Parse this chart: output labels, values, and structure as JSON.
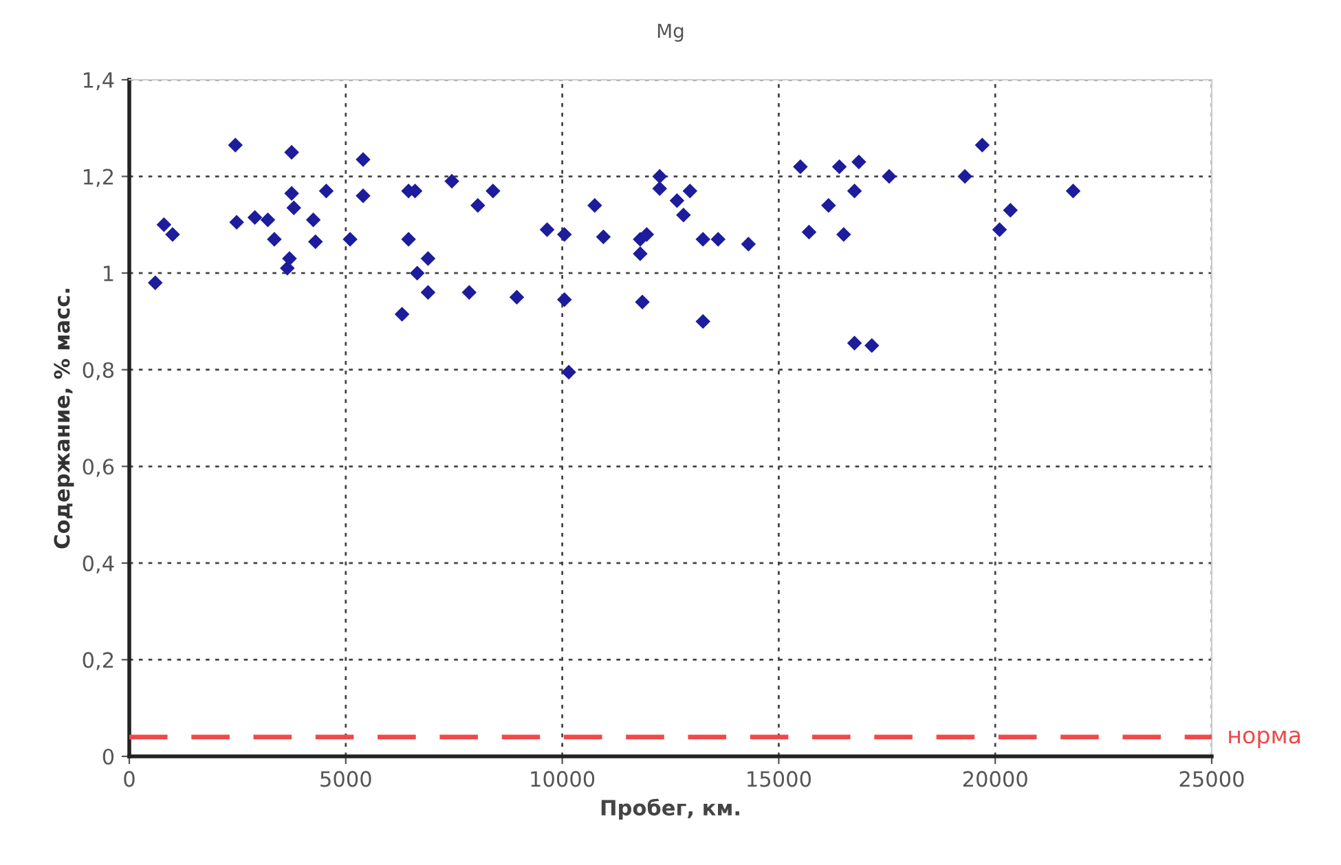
{
  "chart_data": {
    "type": "scatter",
    "title": "Mg",
    "xlabel": "Пробег, км.",
    "ylabel": "Содержание, % масс.",
    "x": [
      600,
      800,
      1000,
      2450,
      2480,
      2900,
      3200,
      3350,
      3650,
      3700,
      3750,
      3750,
      3800,
      4250,
      4300,
      4550,
      5100,
      5400,
      5400,
      6300,
      6450,
      6600,
      6450,
      6650,
      6900,
      6900,
      7450,
      7850,
      8050,
      8400,
      8950,
      9650,
      10050,
      10050,
      10150,
      10750,
      10950,
      11800,
      11800,
      11850,
      11950,
      12250,
      12250,
      12650,
      12800,
      12950,
      13250,
      13250,
      13600,
      14300,
      15500,
      15700,
      16150,
      16400,
      16500,
      16750,
      16850,
      16750,
      17150,
      17550,
      19300,
      19700,
      20100,
      20350,
      21800
    ],
    "series": [
      {
        "color": "#1c1c9c",
        "values": [
          0.98,
          1.1,
          1.08,
          1.265,
          1.105,
          1.115,
          1.11,
          1.07,
          1.01,
          1.03,
          1.165,
          1.25,
          1.135,
          1.11,
          1.065,
          1.17,
          1.07,
          1.235,
          1.16,
          0.915,
          1.17,
          1.17,
          1.07,
          1.0,
          1.03,
          0.96,
          1.19,
          0.96,
          1.14,
          1.17,
          0.95,
          1.09,
          1.08,
          0.945,
          0.795,
          1.14,
          1.075,
          1.07,
          1.04,
          0.94,
          1.08,
          1.2,
          1.175,
          1.15,
          1.12,
          1.17,
          1.07,
          0.9,
          1.07,
          1.06,
          1.22,
          1.085,
          1.14,
          1.22,
          1.08,
          1.17,
          1.23,
          0.855,
          0.85,
          1.2,
          1.2,
          1.265,
          1.09,
          1.13,
          1.17
        ]
      }
    ],
    "xlim": [
      0,
      25000
    ],
    "xticks": [
      0,
      5000,
      10000,
      15000,
      20000,
      25000
    ],
    "ylim": [
      0,
      1.4
    ],
    "yticks": [
      0,
      {
        "value": 0.2,
        "label": "0,2"
      },
      {
        "value": 0.4,
        "label": "0,4"
      },
      {
        "value": 0.6,
        "label": "0,6"
      },
      {
        "value": 0.8,
        "label": "0,8"
      },
      1,
      {
        "value": 1.2,
        "label": "1,2"
      },
      {
        "value": 1.4,
        "label": "1,4"
      }
    ],
    "ref_lines": [
      {
        "axis": "y",
        "value": 0.04,
        "label": "норма",
        "color": "#f04848",
        "line_style": "dashed"
      }
    ],
    "grid": true,
    "marker": "diamond",
    "legend": false
  }
}
